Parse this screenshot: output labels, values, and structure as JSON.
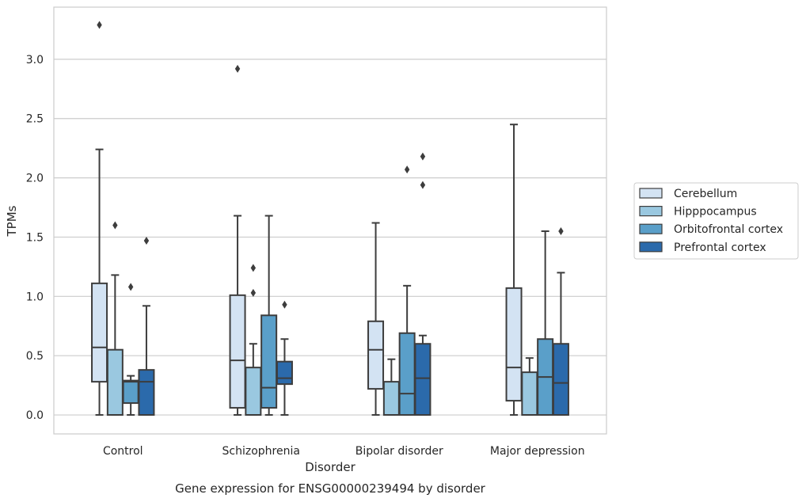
{
  "chart_data": {
    "type": "box",
    "title": "",
    "caption": "Gene expression for ENSG00000239494 by disorder",
    "xlabel": "Disorder",
    "ylabel": "TPMs",
    "ylim": [
      -0.16,
      3.44
    ],
    "yticks": [
      "0.0",
      "0.5",
      "1.0",
      "1.5",
      "2.0",
      "2.5",
      "3.0"
    ],
    "grid": "horizontal",
    "legend_position": "right",
    "categories": [
      "Control",
      "Schizophrenia",
      "Bipolar disorder",
      "Major depression"
    ],
    "series": [
      {
        "name": "Cerebellum",
        "color": "#d3e3f3",
        "boxes": [
          {
            "q1": 0.28,
            "median": 0.57,
            "q3": 1.11,
            "whisker_low": 0.0,
            "whisker_high": 2.24,
            "outliers": [
              3.29
            ]
          },
          {
            "q1": 0.06,
            "median": 0.46,
            "q3": 1.01,
            "whisker_low": 0.0,
            "whisker_high": 1.68,
            "outliers": [
              2.92
            ]
          },
          {
            "q1": 0.22,
            "median": 0.55,
            "q3": 0.79,
            "whisker_low": 0.0,
            "whisker_high": 1.62,
            "outliers": []
          },
          {
            "q1": 0.12,
            "median": 0.4,
            "q3": 1.07,
            "whisker_low": 0.0,
            "whisker_high": 2.45,
            "outliers": []
          }
        ]
      },
      {
        "name": "Hipppocampus",
        "color": "#9ac8e0",
        "boxes": [
          {
            "q1": 0.0,
            "median": 0.0,
            "q3": 0.55,
            "whisker_low": 0.0,
            "whisker_high": 1.18,
            "outliers": [
              1.6
            ]
          },
          {
            "q1": 0.0,
            "median": 0.0,
            "q3": 0.4,
            "whisker_low": 0.0,
            "whisker_high": 0.6,
            "outliers": [
              1.03,
              1.24
            ]
          },
          {
            "q1": 0.0,
            "median": 0.0,
            "q3": 0.28,
            "whisker_low": 0.0,
            "whisker_high": 0.47,
            "outliers": []
          },
          {
            "q1": 0.0,
            "median": 0.0,
            "q3": 0.36,
            "whisker_low": 0.0,
            "whisker_high": 0.48,
            "outliers": []
          }
        ]
      },
      {
        "name": "Orbitofrontal cortex",
        "color": "#5a9fc9",
        "boxes": [
          {
            "q1": 0.1,
            "median": 0.28,
            "q3": 0.29,
            "whisker_low": 0.0,
            "whisker_high": 0.33,
            "outliers": [
              1.08
            ]
          },
          {
            "q1": 0.06,
            "median": 0.23,
            "q3": 0.84,
            "whisker_low": 0.0,
            "whisker_high": 1.68,
            "outliers": []
          },
          {
            "q1": 0.0,
            "median": 0.18,
            "q3": 0.69,
            "whisker_low": 0.0,
            "whisker_high": 1.09,
            "outliers": [
              2.07
            ]
          },
          {
            "q1": 0.0,
            "median": 0.32,
            "q3": 0.64,
            "whisker_low": 0.0,
            "whisker_high": 1.55,
            "outliers": []
          }
        ]
      },
      {
        "name": "Prefrontal cortex",
        "color": "#2b6aab",
        "boxes": [
          {
            "q1": 0.0,
            "median": 0.28,
            "q3": 0.38,
            "whisker_low": 0.0,
            "whisker_high": 0.92,
            "outliers": [
              1.47
            ]
          },
          {
            "q1": 0.26,
            "median": 0.31,
            "q3": 0.45,
            "whisker_low": 0.0,
            "whisker_high": 0.64,
            "outliers": [
              0.93
            ]
          },
          {
            "q1": 0.0,
            "median": 0.31,
            "q3": 0.6,
            "whisker_low": 0.0,
            "whisker_high": 0.67,
            "outliers": [
              1.94,
              2.18
            ]
          },
          {
            "q1": 0.0,
            "median": 0.27,
            "q3": 0.6,
            "whisker_low": 0.0,
            "whisker_high": 1.2,
            "outliers": [
              1.55
            ]
          }
        ]
      }
    ]
  }
}
